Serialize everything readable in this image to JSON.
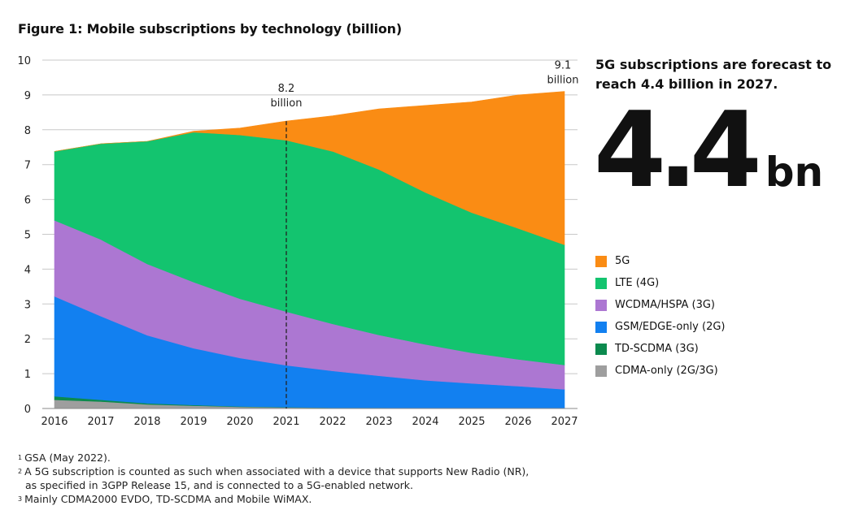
{
  "title": "Figure 1: Mobile subscriptions by technology (billion)",
  "headline": "5G subscriptions are forecast to reach 4.4 billion in 2027.",
  "big_number": {
    "value": "4.4",
    "unit": "bn"
  },
  "callouts": [
    {
      "year": 2021,
      "value": "8.2",
      "unit": "billion"
    },
    {
      "year": 2027,
      "value": "9.1",
      "unit": "billion"
    }
  ],
  "footnotes": [
    {
      "mark": "1",
      "text": "GSA (May 2022)."
    },
    {
      "mark": "2",
      "text": "A 5G subscription is counted as such when associated with a device that supports New Radio (NR),"
    },
    {
      "mark": "",
      "text": "as specified in 3GPP Release 15, and is connected to a 5G-enabled network."
    },
    {
      "mark": "3",
      "text": "Mainly CDMA2000 EVDO, TD-SCDMA and Mobile WiMAX."
    }
  ],
  "chart_data": {
    "type": "area",
    "stacked": true,
    "x": [
      2016,
      2017,
      2018,
      2019,
      2020,
      2021,
      2022,
      2023,
      2024,
      2025,
      2026,
      2027
    ],
    "ylim": [
      0,
      10
    ],
    "yticks": [
      0,
      1,
      2,
      3,
      4,
      5,
      6,
      7,
      8,
      9,
      10
    ],
    "grid": true,
    "legend_position": "right",
    "series": [
      {
        "name": "CDMA-only (2G/3G)",
        "color": "#9e9e9e",
        "values": [
          0.25,
          0.2,
          0.12,
          0.08,
          0.05,
          0.03,
          0.02,
          0.02,
          0.01,
          0.01,
          0.01,
          0.01
        ]
      },
      {
        "name": "TD-SCDMA (3G)",
        "color": "#0b8a4e",
        "values": [
          0.1,
          0.05,
          0.03,
          0.02,
          0.01,
          0.01,
          0.0,
          0.0,
          0.0,
          0.0,
          0.0,
          0.0
        ]
      },
      {
        "name": "GSM/EDGE-only (2G)",
        "color": "#1280f0",
        "values": [
          2.87,
          2.4,
          1.95,
          1.63,
          1.39,
          1.2,
          1.06,
          0.92,
          0.8,
          0.71,
          0.63,
          0.54
        ]
      },
      {
        "name": "WCDMA/HSPA (3G)",
        "color": "#ac77d2",
        "values": [
          2.18,
          2.2,
          2.05,
          1.9,
          1.7,
          1.54,
          1.35,
          1.17,
          1.03,
          0.88,
          0.77,
          0.7
        ]
      },
      {
        "name": "LTE (4G)",
        "color": "#13c46f",
        "values": [
          1.98,
          2.75,
          3.52,
          4.3,
          4.7,
          4.92,
          4.95,
          4.75,
          4.36,
          4.02,
          3.76,
          3.45
        ]
      },
      {
        "name": "5G",
        "color": "#fa8c14",
        "values": [
          0.0,
          0.0,
          0.0,
          0.03,
          0.2,
          0.55,
          1.02,
          1.74,
          2.5,
          3.18,
          3.83,
          4.4
        ]
      }
    ],
    "legend_order": [
      "5G",
      "LTE (4G)",
      "WCDMA/HSPA (3G)",
      "GSM/EDGE-only (2G)",
      "TD-SCDMA (3G)",
      "CDMA-only (2G/3G)"
    ]
  }
}
